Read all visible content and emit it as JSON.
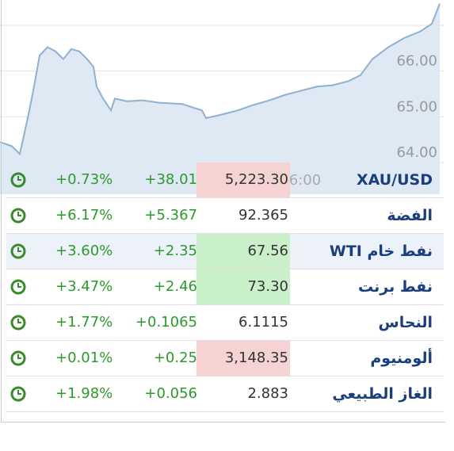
{
  "chart_data": {
    "type": "line",
    "x": [
      0,
      15,
      25,
      35,
      42,
      50,
      60,
      70,
      80,
      90,
      100,
      110,
      118,
      122,
      130,
      140,
      145,
      160,
      180,
      200,
      230,
      255,
      260,
      280,
      300,
      320,
      340,
      360,
      380,
      400,
      420,
      440,
      455,
      470,
      490,
      510,
      530,
      545,
      555
    ],
    "series": [
      {
        "color": "#8fb0d0",
        "values": [
          64.45,
          64.36,
          64.19,
          64.97,
          65.57,
          66.34,
          66.52,
          66.43,
          66.26,
          66.48,
          66.43,
          66.26,
          66.09,
          65.66,
          65.4,
          65.14,
          65.4,
          65.34,
          65.36,
          65.31,
          65.28,
          65.14,
          64.97,
          65.05,
          65.14,
          65.26,
          65.36,
          65.48,
          65.57,
          65.66,
          65.69,
          65.78,
          65.91,
          66.26,
          66.52,
          66.72,
          66.86,
          67.03,
          67.47
        ]
      }
    ],
    "xlim": [
      0,
      560
    ],
    "xticks": [
      {
        "value": 385,
        "label": "6:00"
      }
    ],
    "ylim": [
      63.83,
      67.55
    ],
    "yticks": [
      {
        "value": 64,
        "label": "64.00"
      },
      {
        "value": 65,
        "label": "65.00"
      },
      {
        "value": 66,
        "label": "66.00"
      }
    ],
    "grid": true
  },
  "table": {
    "rows": [
      {
        "name": "XAU/USD",
        "price": "5,223.30",
        "change": "+38.01",
        "percent": "+0.73%",
        "highlight": "#f6d3d3"
      },
      {
        "name": "الفضة",
        "price": "92.365",
        "change": "+5.367",
        "percent": "+6.17%",
        "highlight": null
      },
      {
        "name": "نفط خام WTI",
        "price": "67.56",
        "change": "+2.35",
        "percent": "+3.60%",
        "highlight": "#c9f0c9"
      },
      {
        "name": "نفط برنت",
        "price": "73.30",
        "change": "+2.46",
        "percent": "+3.47%",
        "highlight": "#c9f0c9"
      },
      {
        "name": "النحاس",
        "price": "6.1115",
        "change": "+0.1065",
        "percent": "+1.77%",
        "highlight": null
      },
      {
        "name": "ألومنيوم",
        "price": "3,148.35",
        "change": "+0.25",
        "percent": "+0.01%",
        "highlight": "#f6d3d3"
      },
      {
        "name": "الغاز الطبيعي",
        "price": "2.883",
        "change": "+0.056",
        "percent": "+1.98%",
        "highlight": null
      }
    ]
  }
}
